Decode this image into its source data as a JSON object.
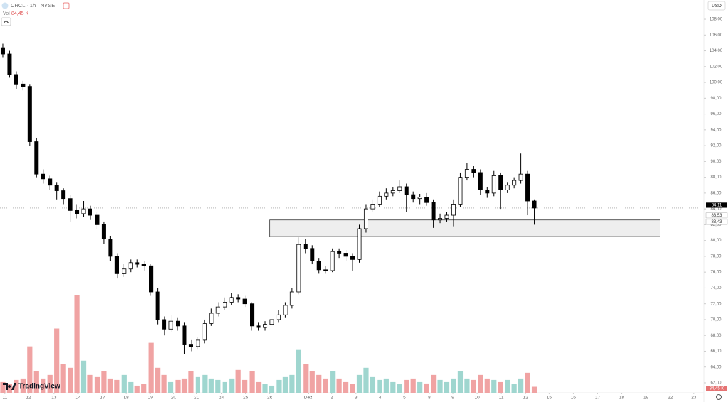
{
  "header": {
    "symbol": "CRCL · 1h · NYSE",
    "vol_label": "Vol",
    "vol_value": "84,45 K",
    "currency": "USD",
    "logo": "TradingView"
  },
  "chart_data": {
    "type": "candlestick",
    "open": [
      104.4,
      103.6,
      101.0,
      99.8,
      99.5,
      92.5,
      88.4,
      87.8,
      87.0,
      86.3,
      85.3,
      83.8,
      83.4,
      84.0,
      83.2,
      82.0,
      80.2,
      78.0,
      75.8,
      76.4,
      77.2,
      77.0,
      76.8,
      73.5,
      70.0,
      68.8,
      69.8,
      69.2,
      66.8,
      66.6,
      67.4,
      69.5,
      70.8,
      71.6,
      72.2,
      72.8,
      72.6,
      72.0,
      69.2,
      69.0,
      69.4,
      70.0,
      70.6,
      71.8,
      73.5,
      79.5,
      79.0,
      77.4,
      76.3,
      76.2,
      78.6,
      78.4,
      78.0,
      77.6,
      81.5,
      84.0,
      84.6,
      85.6,
      86.0,
      86.3,
      86.8,
      85.8,
      85.3,
      85.5,
      84.8,
      82.6,
      82.8,
      83.2,
      84.6,
      88.0,
      89.0,
      88.6,
      86.4,
      86.0,
      88.2,
      86.4,
      87.0,
      87.6,
      88.4,
      85.0
    ],
    "high": [
      104.9,
      104.0,
      101.4,
      100.2,
      99.8,
      93.0,
      89.0,
      88.2,
      87.4,
      86.6,
      85.8,
      84.6,
      85.0,
      84.4,
      83.6,
      82.4,
      80.6,
      78.4,
      77.0,
      77.6,
      77.6,
      77.4,
      77.0,
      74.0,
      70.4,
      70.6,
      70.2,
      69.6,
      67.4,
      67.8,
      70.0,
      71.4,
      72.2,
      72.8,
      73.4,
      73.2,
      73.0,
      72.2,
      69.6,
      69.8,
      70.4,
      71.2,
      72.2,
      74.0,
      80.4,
      80.2,
      79.4,
      77.8,
      76.8,
      79.0,
      79.0,
      78.8,
      78.4,
      82.0,
      84.6,
      85.2,
      86.2,
      86.6,
      86.8,
      87.6,
      87.2,
      86.2,
      85.9,
      86.0,
      85.2,
      83.4,
      83.6,
      85.2,
      88.6,
      89.8,
      89.4,
      89.0,
      86.8,
      88.8,
      88.6,
      87.4,
      88.0,
      91.0,
      88.8,
      85.2
    ],
    "low": [
      103.2,
      100.6,
      99.2,
      99.0,
      92.0,
      88.0,
      87.2,
      86.4,
      85.2,
      84.6,
      82.4,
      82.8,
      83.0,
      82.6,
      81.4,
      79.6,
      77.4,
      75.2,
      75.4,
      76.0,
      76.6,
      76.2,
      73.0,
      69.4,
      68.0,
      68.4,
      68.6,
      65.6,
      66.0,
      66.2,
      67.0,
      69.2,
      70.4,
      71.2,
      71.8,
      72.2,
      71.6,
      68.6,
      68.6,
      68.6,
      69.0,
      69.6,
      70.2,
      71.4,
      73.2,
      78.4,
      77.0,
      75.8,
      75.8,
      76.0,
      77.8,
      77.4,
      76.2,
      77.2,
      81.0,
      83.6,
      84.2,
      85.2,
      85.6,
      86.0,
      83.6,
      84.8,
      84.6,
      84.4,
      81.6,
      82.2,
      82.4,
      81.8,
      84.2,
      87.6,
      88.0,
      85.8,
      85.4,
      85.6,
      84.0,
      86.0,
      86.6,
      87.2,
      83.2,
      82.0
    ],
    "close": [
      103.6,
      101.0,
      99.8,
      99.5,
      92.5,
      88.4,
      87.8,
      87.0,
      86.3,
      85.3,
      83.8,
      83.4,
      84.0,
      83.2,
      82.0,
      80.2,
      78.0,
      75.8,
      76.4,
      77.2,
      77.0,
      76.8,
      73.5,
      70.0,
      68.8,
      69.8,
      69.2,
      66.8,
      66.6,
      67.4,
      69.5,
      70.8,
      71.6,
      72.2,
      72.8,
      72.6,
      72.0,
      69.2,
      69.0,
      69.4,
      70.0,
      70.6,
      71.8,
      73.5,
      79.5,
      79.0,
      77.4,
      76.3,
      76.2,
      78.6,
      78.4,
      78.0,
      77.6,
      81.5,
      84.0,
      84.6,
      85.6,
      86.0,
      86.3,
      86.8,
      85.8,
      85.3,
      85.5,
      84.8,
      82.6,
      82.8,
      83.2,
      84.6,
      88.0,
      89.0,
      88.6,
      86.4,
      86.0,
      88.2,
      86.4,
      87.0,
      87.6,
      88.4,
      85.0,
      84.11
    ],
    "volume": [
      150,
      120,
      180,
      200,
      650,
      300,
      200,
      250,
      900,
      400,
      350,
      1370,
      450,
      250,
      220,
      300,
      200,
      180,
      250,
      150,
      100,
      120,
      700,
      350,
      250,
      150,
      180,
      200,
      300,
      220,
      250,
      200,
      180,
      150,
      200,
      320,
      180,
      300,
      150,
      120,
      100,
      180,
      220,
      250,
      600,
      400,
      300,
      250,
      200,
      300,
      200,
      150,
      120,
      250,
      350,
      220,
      180,
      200,
      150,
      120,
      180,
      200,
      150,
      130,
      250,
      180,
      150,
      200,
      300,
      200,
      180,
      250,
      200,
      180,
      150,
      180,
      120,
      200,
      280,
      84.45
    ],
    "colors": {
      "up": "#ffffff",
      "down": "#000000",
      "vol_up": "#9fd6cf",
      "vol_down": "#f0a3a3",
      "zone": "#e3e3e3"
    },
    "ylim": [
      60.74,
      110.43
    ],
    "yticks": [
      {
        "value": 62,
        "label": "62,00"
      },
      {
        "value": 64,
        "label": "64,00"
      },
      {
        "value": 66,
        "label": "66,00"
      },
      {
        "value": 68,
        "label": "68,00"
      },
      {
        "value": 70,
        "label": "70,00"
      },
      {
        "value": 72,
        "label": "72,00"
      },
      {
        "value": 74,
        "label": "74,00"
      },
      {
        "value": 76,
        "label": "76,00"
      },
      {
        "value": 78,
        "label": "78,00"
      },
      {
        "value": 80,
        "label": "80,00"
      },
      {
        "value": 82,
        "label": "82,00"
      },
      {
        "value": 84,
        "label": "84,00"
      },
      {
        "value": 86,
        "label": "86,00"
      },
      {
        "value": 88,
        "label": "88,00"
      },
      {
        "value": 90,
        "label": "90,00"
      },
      {
        "value": 92,
        "label": "92,00"
      },
      {
        "value": 94,
        "label": "94,00"
      },
      {
        "value": 96,
        "label": "96,00"
      },
      {
        "value": 98,
        "label": "98,00"
      },
      {
        "value": 100,
        "label": "100,00"
      },
      {
        "value": 102,
        "label": "102,00"
      },
      {
        "value": 104,
        "label": "104,00"
      },
      {
        "value": 106,
        "label": "106,00"
      },
      {
        "value": 108,
        "label": "108,00"
      }
    ],
    "xlim": [
      -0.42,
      104.2
    ],
    "xticks": [
      {
        "value": 0.3,
        "label": "11"
      },
      {
        "value": 3.8,
        "label": "12"
      },
      {
        "value": 7.6,
        "label": "13"
      },
      {
        "value": 11.2,
        "label": "14"
      },
      {
        "value": 14.8,
        "label": "17"
      },
      {
        "value": 18.3,
        "label": "18"
      },
      {
        "value": 21.9,
        "label": "19"
      },
      {
        "value": 25.4,
        "label": "20"
      },
      {
        "value": 28.8,
        "label": "21"
      },
      {
        "value": 32.5,
        "label": "24"
      },
      {
        "value": 36.1,
        "label": "25"
      },
      {
        "value": 39.7,
        "label": "26"
      },
      {
        "value": 45.4,
        "label": "Dez"
      },
      {
        "value": 48.9,
        "label": "2"
      },
      {
        "value": 52.5,
        "label": "3"
      },
      {
        "value": 56.1,
        "label": "4"
      },
      {
        "value": 59.7,
        "label": "5"
      },
      {
        "value": 63.4,
        "label": "8"
      },
      {
        "value": 66.9,
        "label": "9"
      },
      {
        "value": 70.5,
        "label": "10"
      },
      {
        "value": 74.1,
        "label": "11"
      },
      {
        "value": 77.7,
        "label": "12"
      },
      {
        "value": 81.2,
        "label": "15"
      },
      {
        "value": 84.8,
        "label": "16"
      },
      {
        "value": 88.4,
        "label": "17"
      },
      {
        "value": 92.0,
        "label": "18"
      },
      {
        "value": 95.6,
        "label": "19"
      },
      {
        "value": 99.2,
        "label": "22"
      },
      {
        "value": 102.7,
        "label": "23"
      }
    ],
    "vol_ylim": [
      0,
      5500
    ],
    "price_markers": [
      {
        "value": 84.11,
        "label": "84,11"
      },
      {
        "value": 83.53,
        "label": "83,53"
      },
      {
        "value": 83.43,
        "label": "83,43"
      }
    ],
    "vol_marker": "84,45 K",
    "zone": {
      "x": [
        39.7,
        97.7
      ],
      "y": [
        80.5,
        82.6
      ]
    }
  }
}
